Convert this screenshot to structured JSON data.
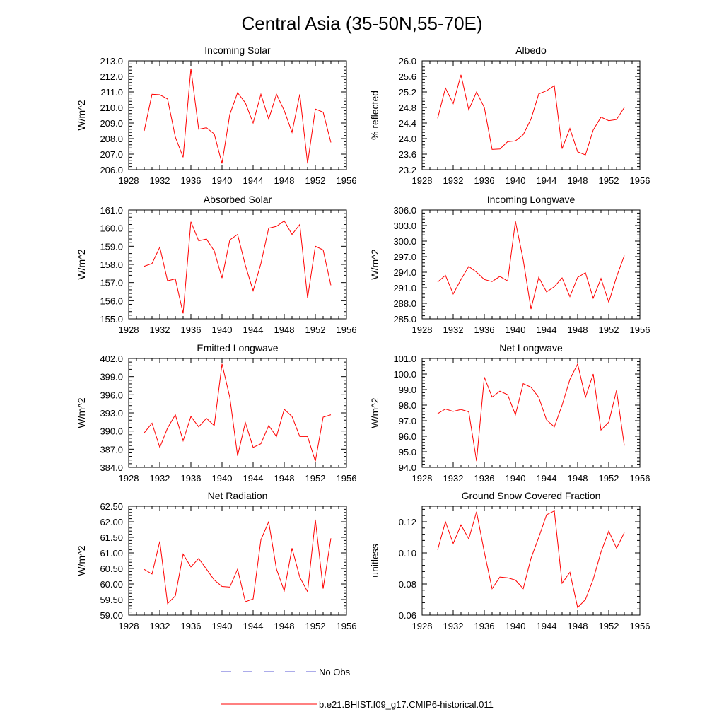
{
  "title": "Central Asia (35-50N,55-70E)",
  "colors": {
    "model": "#ff0000",
    "obs": "#5a5ad6",
    "axis": "#000000"
  },
  "legend": [
    {
      "label": "No Obs",
      "style": "dashed",
      "color": "#5a5ad6"
    },
    {
      "label": "b.e21.BHIST.f09_g17.CMIP6-historical.011",
      "style": "solid",
      "color": "#ff0000"
    }
  ],
  "chart_data": [
    {
      "type": "line",
      "title": "Incoming Solar",
      "ylabel": "W/m^2",
      "xlim": [
        1928,
        1956
      ],
      "xticks": [
        "1928",
        "1932",
        "1936",
        "1940",
        "1944",
        "1948",
        "1952",
        "1956"
      ],
      "ylim": [
        206.0,
        213.0
      ],
      "yticks": [
        "206.0",
        "207.0",
        "208.0",
        "209.0",
        "210.0",
        "211.0",
        "212.0",
        "213.0"
      ],
      "x": [
        1930,
        1931,
        1932,
        1933,
        1934,
        1935,
        1936,
        1937,
        1938,
        1939,
        1940,
        1941,
        1942,
        1943,
        1944,
        1945,
        1946,
        1947,
        1948,
        1949,
        1950,
        1951,
        1952,
        1953,
        1954
      ],
      "series": [
        {
          "name": "b.e21.BHIST.f09_g17.CMIP6-historical.011",
          "values": [
            208.5,
            210.85,
            210.82,
            210.55,
            208.1,
            206.8,
            212.5,
            208.6,
            208.7,
            208.3,
            206.4,
            209.55,
            210.95,
            210.3,
            209.0,
            210.85,
            209.25,
            210.85,
            209.8,
            208.4,
            210.85,
            206.4,
            209.9,
            209.7,
            207.75
          ]
        }
      ]
    },
    {
      "type": "line",
      "title": "Albedo",
      "ylabel": "% reflected",
      "xlim": [
        1928,
        1956
      ],
      "xticks": [
        "1928",
        "1932",
        "1936",
        "1940",
        "1944",
        "1948",
        "1952",
        "1956"
      ],
      "ylim": [
        23.2,
        26.0
      ],
      "yticks": [
        "23.2",
        "23.6",
        "24.0",
        "24.4",
        "24.8",
        "25.2",
        "25.6",
        "26.0"
      ],
      "x": [
        1930,
        1931,
        1932,
        1933,
        1934,
        1935,
        1936,
        1937,
        1938,
        1939,
        1940,
        1941,
        1942,
        1943,
        1944,
        1945,
        1946,
        1947,
        1948,
        1949,
        1950,
        1951,
        1952,
        1953,
        1954
      ],
      "series": [
        {
          "name": "b.e21.BHIST.f09_g17.CMIP6-historical.011",
          "values": [
            24.52,
            25.3,
            24.9,
            25.64,
            24.74,
            25.2,
            24.8,
            23.72,
            23.73,
            23.92,
            23.94,
            24.1,
            24.5,
            25.15,
            25.23,
            25.36,
            23.74,
            24.26,
            23.66,
            23.58,
            24.22,
            24.55,
            24.46,
            24.49,
            24.8
          ]
        }
      ]
    },
    {
      "type": "line",
      "title": "Absorbed Solar",
      "ylabel": "W/m^2",
      "xlim": [
        1928,
        1956
      ],
      "xticks": [
        "1928",
        "1932",
        "1936",
        "1940",
        "1944",
        "1948",
        "1952",
        "1956"
      ],
      "ylim": [
        155.0,
        161.0
      ],
      "yticks": [
        "155.0",
        "156.0",
        "157.0",
        "158.0",
        "159.0",
        "160.0",
        "161.0"
      ],
      "x": [
        1930,
        1931,
        1932,
        1933,
        1934,
        1935,
        1936,
        1937,
        1938,
        1939,
        1940,
        1941,
        1942,
        1943,
        1944,
        1945,
        1946,
        1947,
        1948,
        1949,
        1950,
        1951,
        1952,
        1953,
        1954
      ],
      "series": [
        {
          "name": "b.e21.BHIST.f09_g17.CMIP6-historical.011",
          "values": [
            157.9,
            158.05,
            158.95,
            157.1,
            157.2,
            155.3,
            160.35,
            159.3,
            159.4,
            158.75,
            157.25,
            159.35,
            159.65,
            157.95,
            156.55,
            158.05,
            160.0,
            160.1,
            160.4,
            159.65,
            160.2,
            156.15,
            159.0,
            158.8,
            156.85
          ]
        }
      ]
    },
    {
      "type": "line",
      "title": "Incoming Longwave",
      "ylabel": "W/m^2",
      "xlim": [
        1928,
        1956
      ],
      "xticks": [
        "1928",
        "1932",
        "1936",
        "1940",
        "1944",
        "1948",
        "1952",
        "1956"
      ],
      "ylim": [
        285.0,
        306.0
      ],
      "yticks": [
        "285.0",
        "288.0",
        "291.0",
        "294.0",
        "297.0",
        "300.0",
        "303.0",
        "306.0"
      ],
      "x": [
        1930,
        1931,
        1932,
        1933,
        1934,
        1935,
        1936,
        1937,
        1938,
        1939,
        1940,
        1941,
        1942,
        1943,
        1944,
        1945,
        1946,
        1947,
        1948,
        1949,
        1950,
        1951,
        1952,
        1953,
        1954
      ],
      "series": [
        {
          "name": "b.e21.BHIST.f09_g17.CMIP6-historical.011",
          "values": [
            292.1,
            293.4,
            289.8,
            292.6,
            295.1,
            294.0,
            292.6,
            292.2,
            293.2,
            292.3,
            303.8,
            296.4,
            286.9,
            293.0,
            290.2,
            291.2,
            292.9,
            289.3,
            293.0,
            293.9,
            289.0,
            292.8,
            288.2,
            293.1,
            297.2
          ]
        }
      ]
    },
    {
      "type": "line",
      "title": "Emitted Longwave",
      "ylabel": "W/m^2",
      "xlim": [
        1928,
        1956
      ],
      "xticks": [
        "1928",
        "1932",
        "1936",
        "1940",
        "1944",
        "1948",
        "1952",
        "1956"
      ],
      "ylim": [
        384.0,
        402.0
      ],
      "yticks": [
        "384.0",
        "387.0",
        "390.0",
        "393.0",
        "396.0",
        "399.0",
        "402.0"
      ],
      "x": [
        1930,
        1931,
        1932,
        1933,
        1934,
        1935,
        1936,
        1937,
        1938,
        1939,
        1940,
        1941,
        1942,
        1943,
        1944,
        1945,
        1946,
        1947,
        1948,
        1949,
        1950,
        1951,
        1952,
        1953,
        1954
      ],
      "series": [
        {
          "name": "b.e21.BHIST.f09_g17.CMIP6-historical.011",
          "values": [
            389.7,
            391.3,
            387.3,
            390.5,
            392.7,
            388.4,
            392.4,
            390.7,
            392.1,
            390.9,
            401.1,
            395.6,
            385.9,
            391.4,
            387.3,
            387.9,
            390.9,
            389.1,
            393.6,
            392.4,
            389.1,
            389.1,
            385.0,
            392.3,
            392.7
          ]
        }
      ]
    },
    {
      "type": "line",
      "title": "Net Longwave",
      "ylabel": "W/m^2",
      "xlim": [
        1928,
        1956
      ],
      "xticks": [
        "1928",
        "1932",
        "1936",
        "1940",
        "1944",
        "1948",
        "1952",
        "1956"
      ],
      "ylim": [
        94.0,
        101.0
      ],
      "yticks": [
        "94.0",
        "95.0",
        "96.0",
        "97.0",
        "98.0",
        "99.0",
        "100.0",
        "101.0"
      ],
      "x": [
        1930,
        1931,
        1932,
        1933,
        1934,
        1935,
        1936,
        1937,
        1938,
        1939,
        1940,
        1941,
        1942,
        1943,
        1944,
        1945,
        1946,
        1947,
        1948,
        1949,
        1950,
        1951,
        1952,
        1953,
        1954
      ],
      "series": [
        {
          "name": "b.e21.BHIST.f09_g17.CMIP6-historical.011",
          "values": [
            97.45,
            97.75,
            97.6,
            97.72,
            97.57,
            94.4,
            99.8,
            98.52,
            98.9,
            98.67,
            97.38,
            99.38,
            99.15,
            98.5,
            97.05,
            96.6,
            98.0,
            99.65,
            100.65,
            98.5,
            100.0,
            96.4,
            96.9,
            98.95,
            95.4
          ]
        }
      ]
    },
    {
      "type": "line",
      "title": "Net Radiation",
      "ylabel": "W/m^2",
      "xlim": [
        1928,
        1956
      ],
      "xticks": [
        "1928",
        "1932",
        "1936",
        "1940",
        "1944",
        "1948",
        "1952",
        "1956"
      ],
      "ylim": [
        59.0,
        62.5
      ],
      "yticks": [
        "59.00",
        "59.50",
        "60.00",
        "60.50",
        "61.00",
        "61.50",
        "62.00",
        "62.50"
      ],
      "x": [
        1930,
        1931,
        1932,
        1933,
        1934,
        1935,
        1936,
        1937,
        1938,
        1939,
        1940,
        1941,
        1942,
        1943,
        1944,
        1945,
        1946,
        1947,
        1948,
        1949,
        1950,
        1951,
        1952,
        1953,
        1954
      ],
      "series": [
        {
          "name": "b.e21.BHIST.f09_g17.CMIP6-historical.011",
          "values": [
            60.47,
            60.32,
            61.37,
            59.37,
            59.62,
            60.96,
            60.55,
            60.82,
            60.48,
            60.13,
            59.92,
            59.9,
            60.48,
            59.43,
            59.52,
            61.42,
            62.0,
            60.48,
            59.78,
            61.15,
            60.22,
            59.75,
            62.07,
            59.85,
            61.47
          ]
        }
      ]
    },
    {
      "type": "line",
      "title": "Ground Snow Covered Fraction",
      "ylabel": "unitless",
      "xlim": [
        1928,
        1956
      ],
      "xticks": [
        "1928",
        "1932",
        "1936",
        "1940",
        "1944",
        "1948",
        "1952",
        "1956"
      ],
      "ylim": [
        0.06,
        0.13
      ],
      "yticks": [
        "0.06",
        "0.08",
        "0.10",
        "0.12"
      ],
      "x": [
        1930,
        1931,
        1932,
        1933,
        1934,
        1935,
        1936,
        1937,
        1938,
        1939,
        1940,
        1941,
        1942,
        1943,
        1944,
        1945,
        1946,
        1947,
        1948,
        1949,
        1950,
        1951,
        1952,
        1953,
        1954
      ],
      "series": [
        {
          "name": "b.e21.BHIST.f09_g17.CMIP6-historical.011",
          "values": [
            0.102,
            0.12,
            0.106,
            0.118,
            0.109,
            0.1265,
            0.1005,
            0.077,
            0.0845,
            0.084,
            0.0825,
            0.077,
            0.0965,
            0.11,
            0.1245,
            0.127,
            0.0805,
            0.0875,
            0.0648,
            0.07,
            0.083,
            0.1005,
            0.114,
            0.103,
            0.113
          ]
        }
      ]
    }
  ]
}
